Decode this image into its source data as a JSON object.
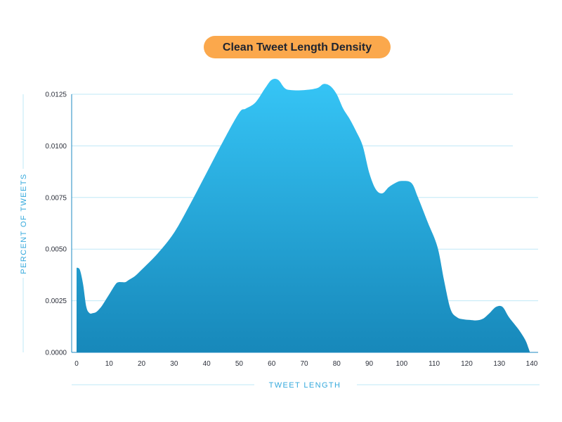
{
  "colors": {
    "title_pill": "#fba84c",
    "title_text": "#1f2430",
    "area_top": "#36c5f6",
    "area_bottom": "#1788ba",
    "grid": "#bfe8f7",
    "axis": "#1e88c0",
    "axis_title": "#35a9dc",
    "tick_text": "#2b2f3a"
  },
  "chart_data": {
    "type": "area",
    "title": "Clean Tweet Length Density",
    "xlabel": "TWEET LENGTH",
    "ylabel": "PERCENT OF TWEETS",
    "xlim": [
      0,
      140
    ],
    "ylim": [
      0,
      0.0125
    ],
    "xticks": [
      "0",
      "10",
      "20",
      "30",
      "40",
      "50",
      "60",
      "70",
      "80",
      "90",
      "100",
      "110",
      "120",
      "130",
      "140"
    ],
    "yticks": [
      "0.0000",
      "0.0025",
      "0.0050",
      "0.0075",
      "0.0100",
      "0.0125"
    ],
    "grid": true,
    "x": [
      0,
      1,
      2,
      3,
      4,
      5,
      6,
      7,
      8,
      10,
      12,
      13,
      14,
      15,
      16,
      18,
      20,
      25,
      30,
      35,
      40,
      45,
      50,
      52,
      55,
      58,
      60,
      62,
      64,
      66,
      70,
      74,
      76,
      78,
      80,
      82,
      84,
      86,
      88,
      90,
      92,
      94,
      96,
      98,
      100,
      103,
      105,
      108,
      111,
      113,
      115,
      117,
      119,
      121,
      123,
      125,
      127,
      129,
      131,
      133,
      136,
      138,
      139
    ],
    "y": [
      0.0041,
      0.004,
      0.0033,
      0.0022,
      0.0019,
      0.0019,
      0.00195,
      0.0021,
      0.0023,
      0.0028,
      0.0033,
      0.0034,
      0.0034,
      0.0034,
      0.0035,
      0.0037,
      0.004,
      0.0048,
      0.0058,
      0.0072,
      0.0087,
      0.0102,
      0.0116,
      0.0118,
      0.0121,
      0.0128,
      0.0132,
      0.0132,
      0.0128,
      0.0127,
      0.0127,
      0.0128,
      0.013,
      0.0129,
      0.0125,
      0.0118,
      0.0113,
      0.0107,
      0.01,
      0.0087,
      0.0079,
      0.0077,
      0.008,
      0.0082,
      0.0083,
      0.0082,
      0.0075,
      0.0063,
      0.0051,
      0.0035,
      0.0021,
      0.0017,
      0.0016,
      0.00157,
      0.00155,
      0.00163,
      0.0019,
      0.0022,
      0.0022,
      0.0017,
      0.0011,
      0.0006,
      0.0002
    ]
  }
}
